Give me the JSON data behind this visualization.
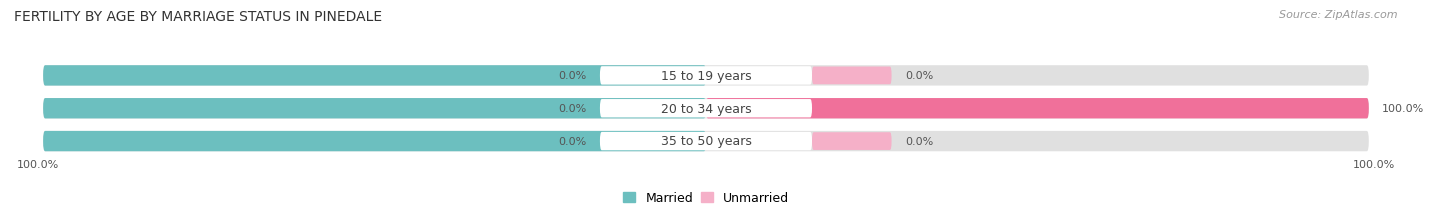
{
  "title": "FERTILITY BY AGE BY MARRIAGE STATUS IN PINEDALE",
  "source": "Source: ZipAtlas.com",
  "categories": [
    "15 to 19 years",
    "20 to 34 years",
    "35 to 50 years"
  ],
  "married_pct": [
    0.0,
    0.0,
    0.0
  ],
  "unmarried_pct": [
    0.0,
    100.0,
    0.0
  ],
  "married_color": "#6cbfbf",
  "unmarried_color": "#f0709a",
  "unmarried_light_color": "#f5b0c8",
  "bar_bg_color": "#e0e0e0",
  "background_color": "#ffffff",
  "title_fontsize": 10,
  "source_fontsize": 8,
  "label_fontsize": 8,
  "category_fontsize": 9,
  "legend_fontsize": 9,
  "left_axis_label": "100.0%",
  "right_axis_label": "100.0%"
}
